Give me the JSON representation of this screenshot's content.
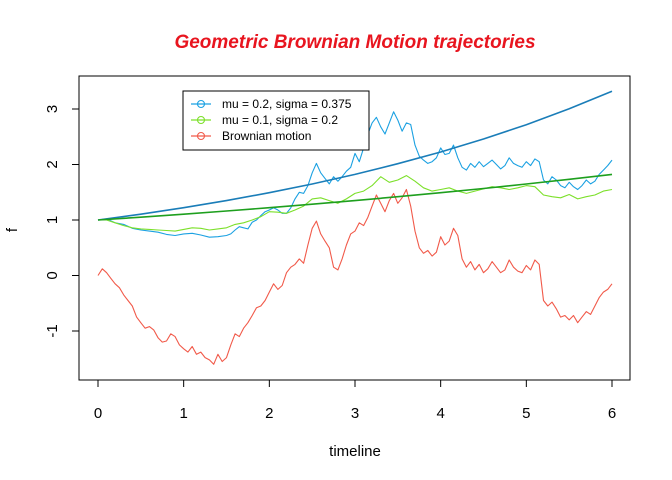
{
  "chart_data": {
    "type": "line",
    "title": "Geometric Brownian Motion trajectories",
    "xlabel": "timeline",
    "ylabel": "f",
    "xlim": [
      0,
      6
    ],
    "ylim": [
      -1.85,
      3.85
    ],
    "x_ticks": [
      0,
      1,
      2,
      3,
      4,
      5,
      6
    ],
    "y_ticks": [
      -1,
      0,
      1,
      2,
      3
    ],
    "title_color": "#e8151f",
    "legend_position": "top-left",
    "series": [
      {
        "name": "mu = 0.2,  sigma = 0.375",
        "color": "#1ba1e2",
        "points": [
          [
            0,
            1.0
          ],
          [
            0.1,
            1.02
          ],
          [
            0.2,
            0.95
          ],
          [
            0.3,
            0.92
          ],
          [
            0.4,
            0.85
          ],
          [
            0.5,
            0.82
          ],
          [
            0.6,
            0.8
          ],
          [
            0.7,
            0.78
          ],
          [
            0.8,
            0.74
          ],
          [
            0.9,
            0.72
          ],
          [
            1.0,
            0.75
          ],
          [
            1.1,
            0.76
          ],
          [
            1.2,
            0.73
          ],
          [
            1.3,
            0.69
          ],
          [
            1.4,
            0.7
          ],
          [
            1.5,
            0.72
          ],
          [
            1.55,
            0.75
          ],
          [
            1.6,
            0.82
          ],
          [
            1.65,
            0.88
          ],
          [
            1.7,
            0.86
          ],
          [
            1.75,
            0.84
          ],
          [
            1.8,
            0.96
          ],
          [
            1.85,
            1.0
          ],
          [
            1.9,
            1.08
          ],
          [
            1.95,
            1.15
          ],
          [
            2.0,
            1.18
          ],
          [
            2.05,
            1.22
          ],
          [
            2.1,
            1.18
          ],
          [
            2.15,
            1.12
          ],
          [
            2.2,
            1.12
          ],
          [
            2.25,
            1.22
          ],
          [
            2.3,
            1.38
          ],
          [
            2.35,
            1.5
          ],
          [
            2.4,
            1.48
          ],
          [
            2.45,
            1.62
          ],
          [
            2.5,
            1.85
          ],
          [
            2.55,
            2.02
          ],
          [
            2.6,
            1.85
          ],
          [
            2.65,
            1.75
          ],
          [
            2.7,
            1.65
          ],
          [
            2.75,
            1.78
          ],
          [
            2.8,
            1.7
          ],
          [
            2.85,
            1.78
          ],
          [
            2.9,
            1.88
          ],
          [
            2.95,
            1.95
          ],
          [
            3.0,
            2.2
          ],
          [
            3.05,
            2.05
          ],
          [
            3.1,
            2.3
          ],
          [
            3.15,
            2.55
          ],
          [
            3.2,
            2.75
          ],
          [
            3.25,
            2.85
          ],
          [
            3.3,
            2.68
          ],
          [
            3.35,
            2.55
          ],
          [
            3.4,
            2.75
          ],
          [
            3.45,
            2.95
          ],
          [
            3.5,
            2.8
          ],
          [
            3.55,
            2.6
          ],
          [
            3.6,
            2.75
          ],
          [
            3.65,
            2.72
          ],
          [
            3.7,
            2.35
          ],
          [
            3.75,
            2.15
          ],
          [
            3.8,
            2.08
          ],
          [
            3.85,
            2.02
          ],
          [
            3.9,
            2.05
          ],
          [
            3.95,
            2.12
          ],
          [
            4.0,
            2.3
          ],
          [
            4.05,
            2.18
          ],
          [
            4.1,
            2.2
          ],
          [
            4.15,
            2.35
          ],
          [
            4.2,
            2.12
          ],
          [
            4.25,
            1.95
          ],
          [
            4.3,
            1.9
          ],
          [
            4.35,
            2.02
          ],
          [
            4.4,
            1.95
          ],
          [
            4.45,
            2.05
          ],
          [
            4.5,
            1.96
          ],
          [
            4.55,
            2.02
          ],
          [
            4.6,
            2.08
          ],
          [
            4.65,
            2.0
          ],
          [
            4.7,
            1.92
          ],
          [
            4.75,
            1.98
          ],
          [
            4.8,
            2.12
          ],
          [
            4.85,
            2.02
          ],
          [
            4.9,
            1.98
          ],
          [
            4.95,
            1.95
          ],
          [
            5.0,
            2.05
          ],
          [
            5.05,
            1.98
          ],
          [
            5.1,
            2.1
          ],
          [
            5.15,
            2.05
          ],
          [
            5.2,
            1.72
          ],
          [
            5.25,
            1.65
          ],
          [
            5.3,
            1.78
          ],
          [
            5.35,
            1.72
          ],
          [
            5.4,
            1.62
          ],
          [
            5.45,
            1.58
          ],
          [
            5.5,
            1.68
          ],
          [
            5.55,
            1.6
          ],
          [
            5.6,
            1.55
          ],
          [
            5.65,
            1.62
          ],
          [
            5.7,
            1.72
          ],
          [
            5.75,
            1.65
          ],
          [
            5.8,
            1.7
          ],
          [
            5.85,
            1.82
          ],
          [
            5.9,
            1.9
          ],
          [
            5.95,
            1.98
          ],
          [
            6.0,
            2.08
          ]
        ]
      },
      {
        "name": "mu = 0.1,  sigma = 0.2",
        "color": "#7ce02a",
        "points": [
          [
            0,
            1.0
          ],
          [
            0.1,
            1.0
          ],
          [
            0.2,
            0.95
          ],
          [
            0.3,
            0.9
          ],
          [
            0.4,
            0.86
          ],
          [
            0.5,
            0.84
          ],
          [
            0.6,
            0.83
          ],
          [
            0.7,
            0.82
          ],
          [
            0.8,
            0.81
          ],
          [
            0.9,
            0.8
          ],
          [
            1.0,
            0.83
          ],
          [
            1.1,
            0.86
          ],
          [
            1.2,
            0.85
          ],
          [
            1.3,
            0.82
          ],
          [
            1.4,
            0.84
          ],
          [
            1.5,
            0.86
          ],
          [
            1.6,
            0.92
          ],
          [
            1.7,
            0.95
          ],
          [
            1.8,
            1.0
          ],
          [
            1.9,
            1.06
          ],
          [
            2.0,
            1.15
          ],
          [
            2.1,
            1.14
          ],
          [
            2.2,
            1.12
          ],
          [
            2.3,
            1.18
          ],
          [
            2.4,
            1.25
          ],
          [
            2.5,
            1.38
          ],
          [
            2.6,
            1.4
          ],
          [
            2.7,
            1.35
          ],
          [
            2.8,
            1.3
          ],
          [
            2.9,
            1.38
          ],
          [
            3.0,
            1.48
          ],
          [
            3.1,
            1.52
          ],
          [
            3.2,
            1.62
          ],
          [
            3.3,
            1.78
          ],
          [
            3.4,
            1.68
          ],
          [
            3.5,
            1.72
          ],
          [
            3.6,
            1.8
          ],
          [
            3.7,
            1.7
          ],
          [
            3.8,
            1.58
          ],
          [
            3.9,
            1.52
          ],
          [
            4.0,
            1.55
          ],
          [
            4.1,
            1.58
          ],
          [
            4.2,
            1.52
          ],
          [
            4.3,
            1.48
          ],
          [
            4.4,
            1.52
          ],
          [
            4.5,
            1.56
          ],
          [
            4.6,
            1.6
          ],
          [
            4.7,
            1.58
          ],
          [
            4.8,
            1.55
          ],
          [
            4.9,
            1.58
          ],
          [
            5.0,
            1.62
          ],
          [
            5.1,
            1.6
          ],
          [
            5.2,
            1.45
          ],
          [
            5.3,
            1.42
          ],
          [
            5.4,
            1.4
          ],
          [
            5.5,
            1.46
          ],
          [
            5.6,
            1.38
          ],
          [
            5.7,
            1.42
          ],
          [
            5.8,
            1.45
          ],
          [
            5.9,
            1.52
          ],
          [
            6.0,
            1.55
          ]
        ]
      },
      {
        "name": "Brownian motion",
        "color": "#f15a4a",
        "points": [
          [
            0,
            0.0
          ],
          [
            0.05,
            0.12
          ],
          [
            0.1,
            0.05
          ],
          [
            0.15,
            -0.05
          ],
          [
            0.2,
            -0.15
          ],
          [
            0.25,
            -0.22
          ],
          [
            0.3,
            -0.35
          ],
          [
            0.35,
            -0.45
          ],
          [
            0.4,
            -0.55
          ],
          [
            0.45,
            -0.75
          ],
          [
            0.5,
            -0.85
          ],
          [
            0.55,
            -0.95
          ],
          [
            0.6,
            -0.92
          ],
          [
            0.65,
            -0.98
          ],
          [
            0.7,
            -1.12
          ],
          [
            0.75,
            -1.2
          ],
          [
            0.8,
            -1.18
          ],
          [
            0.85,
            -1.05
          ],
          [
            0.9,
            -1.1
          ],
          [
            0.95,
            -1.25
          ],
          [
            1.0,
            -1.32
          ],
          [
            1.05,
            -1.38
          ],
          [
            1.1,
            -1.28
          ],
          [
            1.15,
            -1.42
          ],
          [
            1.2,
            -1.38
          ],
          [
            1.25,
            -1.48
          ],
          [
            1.3,
            -1.52
          ],
          [
            1.35,
            -1.6
          ],
          [
            1.4,
            -1.42
          ],
          [
            1.45,
            -1.55
          ],
          [
            1.5,
            -1.48
          ],
          [
            1.55,
            -1.25
          ],
          [
            1.6,
            -1.05
          ],
          [
            1.65,
            -1.1
          ],
          [
            1.7,
            -0.95
          ],
          [
            1.75,
            -0.85
          ],
          [
            1.8,
            -0.72
          ],
          [
            1.85,
            -0.58
          ],
          [
            1.9,
            -0.55
          ],
          [
            1.95,
            -0.45
          ],
          [
            2.0,
            -0.3
          ],
          [
            2.05,
            -0.15
          ],
          [
            2.1,
            -0.25
          ],
          [
            2.15,
            -0.18
          ],
          [
            2.2,
            0.05
          ],
          [
            2.25,
            0.15
          ],
          [
            2.3,
            0.2
          ],
          [
            2.35,
            0.3
          ],
          [
            2.4,
            0.22
          ],
          [
            2.45,
            0.55
          ],
          [
            2.5,
            0.85
          ],
          [
            2.55,
            0.98
          ],
          [
            2.6,
            0.75
          ],
          [
            2.65,
            0.62
          ],
          [
            2.7,
            0.5
          ],
          [
            2.75,
            0.15
          ],
          [
            2.8,
            0.1
          ],
          [
            2.85,
            0.3
          ],
          [
            2.9,
            0.55
          ],
          [
            2.95,
            0.75
          ],
          [
            3.0,
            0.8
          ],
          [
            3.05,
            0.95
          ],
          [
            3.1,
            0.9
          ],
          [
            3.15,
            1.05
          ],
          [
            3.2,
            1.25
          ],
          [
            3.25,
            1.45
          ],
          [
            3.3,
            1.3
          ],
          [
            3.35,
            1.15
          ],
          [
            3.4,
            1.35
          ],
          [
            3.45,
            1.48
          ],
          [
            3.5,
            1.3
          ],
          [
            3.55,
            1.4
          ],
          [
            3.6,
            1.55
          ],
          [
            3.65,
            1.25
          ],
          [
            3.7,
            0.8
          ],
          [
            3.75,
            0.5
          ],
          [
            3.8,
            0.4
          ],
          [
            3.85,
            0.45
          ],
          [
            3.9,
            0.35
          ],
          [
            3.95,
            0.42
          ],
          [
            4.0,
            0.7
          ],
          [
            4.05,
            0.55
          ],
          [
            4.1,
            0.62
          ],
          [
            4.15,
            0.85
          ],
          [
            4.2,
            0.72
          ],
          [
            4.25,
            0.3
          ],
          [
            4.3,
            0.15
          ],
          [
            4.35,
            0.25
          ],
          [
            4.4,
            0.1
          ],
          [
            4.45,
            0.2
          ],
          [
            4.5,
            0.05
          ],
          [
            4.55,
            0.12
          ],
          [
            4.6,
            0.25
          ],
          [
            4.65,
            0.15
          ],
          [
            4.7,
            0.05
          ],
          [
            4.75,
            0.1
          ],
          [
            4.8,
            0.28
          ],
          [
            4.85,
            0.15
          ],
          [
            4.9,
            0.08
          ],
          [
            4.95,
            0.05
          ],
          [
            5.0,
            0.18
          ],
          [
            5.05,
            0.1
          ],
          [
            5.1,
            0.28
          ],
          [
            5.15,
            0.2
          ],
          [
            5.2,
            -0.45
          ],
          [
            5.25,
            -0.55
          ],
          [
            5.3,
            -0.48
          ],
          [
            5.35,
            -0.6
          ],
          [
            5.4,
            -0.75
          ],
          [
            5.45,
            -0.72
          ],
          [
            5.5,
            -0.8
          ],
          [
            5.55,
            -0.72
          ],
          [
            5.6,
            -0.85
          ],
          [
            5.65,
            -0.75
          ],
          [
            5.7,
            -0.65
          ],
          [
            5.75,
            -0.7
          ],
          [
            5.8,
            -0.55
          ],
          [
            5.85,
            -0.4
          ],
          [
            5.9,
            -0.3
          ],
          [
            5.95,
            -0.25
          ],
          [
            6.0,
            -0.15
          ]
        ]
      },
      {
        "color": "#1a7db8",
        "points": [
          [
            0,
            1.0
          ],
          [
            0.5,
            1.105
          ],
          [
            1.0,
            1.221
          ],
          [
            1.5,
            1.35
          ],
          [
            2.0,
            1.492
          ],
          [
            2.5,
            1.649
          ],
          [
            3.0,
            1.822
          ],
          [
            3.5,
            2.014
          ],
          [
            4.0,
            2.226
          ],
          [
            4.5,
            2.46
          ],
          [
            5.0,
            2.718
          ],
          [
            5.5,
            3.004
          ],
          [
            6.0,
            3.32
          ]
        ]
      },
      {
        "color": "#1e9f1e",
        "points": [
          [
            0,
            1.0
          ],
          [
            0.5,
            1.051
          ],
          [
            1.0,
            1.105
          ],
          [
            1.5,
            1.162
          ],
          [
            2.0,
            1.221
          ],
          [
            2.5,
            1.284
          ],
          [
            3.0,
            1.35
          ],
          [
            3.5,
            1.419
          ],
          [
            4.0,
            1.492
          ],
          [
            4.5,
            1.568
          ],
          [
            5.0,
            1.649
          ],
          [
            5.5,
            1.733
          ],
          [
            6.0,
            1.822
          ]
        ]
      }
    ]
  }
}
